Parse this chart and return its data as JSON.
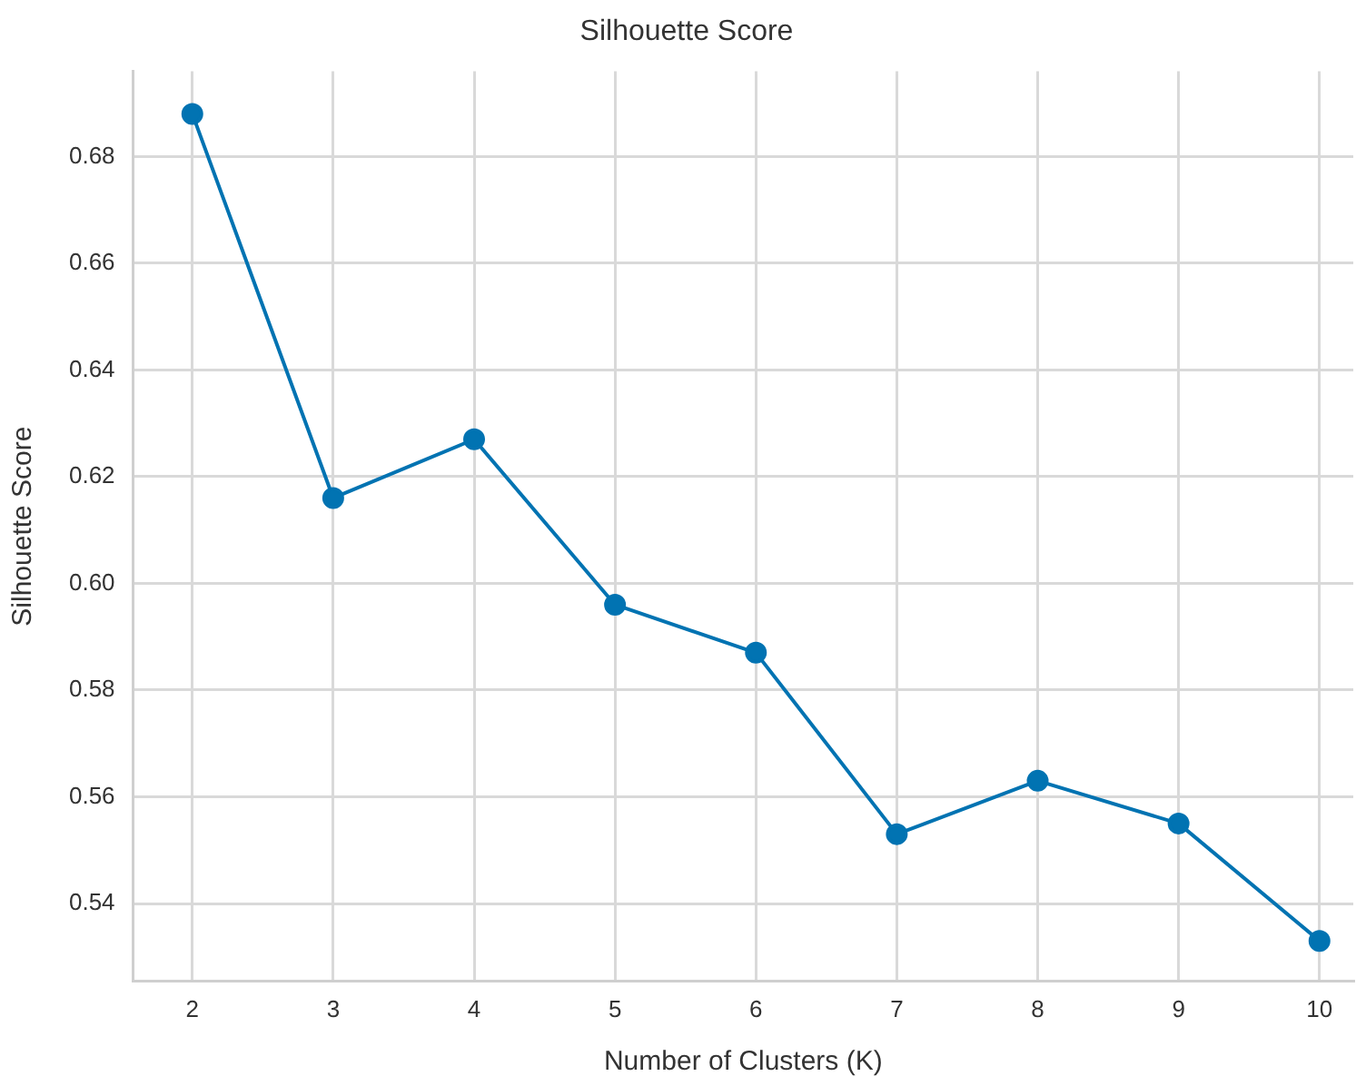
{
  "chart_data": {
    "type": "line",
    "title": "Silhouette Score",
    "xlabel": "Number of Clusters (K)",
    "ylabel": "Silhouette Score",
    "x": [
      2,
      3,
      4,
      5,
      6,
      7,
      8,
      9,
      10
    ],
    "series": [
      {
        "color": "#0173b2",
        "values": [
          0.688,
          0.616,
          0.627,
          0.596,
          0.587,
          0.553,
          0.563,
          0.555,
          0.533
        ]
      }
    ],
    "xlim": [
      1.58,
      10.24
    ],
    "xticks": [
      2,
      3,
      4,
      5,
      6,
      7,
      8,
      9,
      10
    ],
    "ylim": [
      0.5254,
      0.696
    ],
    "yticks": [
      {
        "value": 0.54,
        "label": "0.54"
      },
      {
        "value": 0.56,
        "label": "0.56"
      },
      {
        "value": 0.58,
        "label": "0.58"
      },
      {
        "value": 0.6,
        "label": "0.60"
      },
      {
        "value": 0.62,
        "label": "0.62"
      },
      {
        "value": 0.64,
        "label": "0.64"
      },
      {
        "value": 0.66,
        "label": "0.66"
      },
      {
        "value": 0.68,
        "label": "0.68"
      }
    ],
    "grid": true,
    "legend": false,
    "marker": "circle",
    "line_style": "solid"
  }
}
